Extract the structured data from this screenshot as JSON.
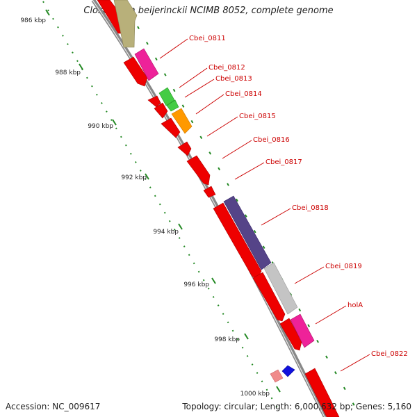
{
  "map": {
    "title": "Clostridium beijerinckii NCIMB 8052, complete genome",
    "accession": "Accession: NC_009617",
    "summary": "Topology: circular; Length: 6,000,632 bp; Genes: 5,160",
    "ruler_labels": [
      "986 kbp",
      "988 kbp",
      "990 kbp",
      "992 kbp",
      "994 kbp",
      "996 kbp",
      "998 kbp",
      "1000 kbp"
    ],
    "gene_labels": [
      "Cbei_0811",
      "Cbei_0812",
      "Cbei_0813",
      "Cbei_0814",
      "Cbei_0815",
      "Cbei_0816",
      "Cbei_0817",
      "Cbei_0818",
      "Cbei_0819",
      "holA",
      "Cbei_0822"
    ],
    "colors": {
      "cds": "#ee0000",
      "label_text": "#cc0000",
      "backbone": "#888888",
      "ruler": "#228822",
      "cog_olive": "#b8b07a",
      "cog_magenta": "#ee2299",
      "cog_green": "#44cc44",
      "cog_orange": "#ff9900",
      "cog_purple": "#554488",
      "cog_grey": "#c4c4c4",
      "cog_blue": "#1111dd",
      "cog_pink": "#f08a8a"
    }
  }
}
